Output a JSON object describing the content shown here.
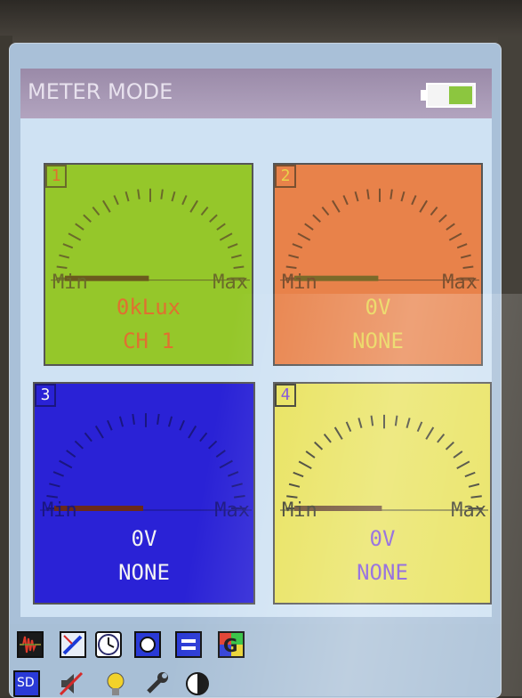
{
  "app": {
    "title": "METER MODE",
    "battery_level": 0.55
  },
  "meters": [
    {
      "number": "1",
      "min_label": "Min",
      "max_label": "Max",
      "value": "0kLux",
      "channel": "CH 1",
      "colors": {
        "bg": "#95c72a",
        "text": "#e07030",
        "ticks": "#6a6a2a",
        "bar": "#6b5a1e"
      }
    },
    {
      "number": "2",
      "min_label": "Min",
      "max_label": "Max",
      "value": "0V",
      "channel": "NONE",
      "colors": {
        "bg": "#e8824a",
        "text": "#e8d24a",
        "ticks": "#7a5030",
        "bar": "#7a6a2a"
      }
    },
    {
      "number": "3",
      "min_label": "Min",
      "max_label": "Max",
      "value": "0V",
      "channel": "NONE",
      "colors": {
        "bg": "#2a22d6",
        "text": "#f4f4f4",
        "ticks": "#1a1680",
        "bar": "#6a2a1a"
      }
    },
    {
      "number": "4",
      "min_label": "Min",
      "max_label": "Max",
      "value": "0V",
      "channel": "NONE",
      "colors": {
        "bg": "#e8e25a",
        "text": "#7a4ad6",
        "ticks": "#3a3a2a",
        "bar": "#6a4a2a"
      }
    }
  ],
  "toolbar": {
    "row1": [
      "waveform-icon",
      "probe-icon",
      "clock-icon",
      "record-icon",
      "equal-icon",
      "g-icon"
    ],
    "row2": [
      "sd-card-icon",
      "speaker-icon",
      "lightbulb-icon",
      "wrench-icon",
      "contrast-icon"
    ],
    "sd_label": "SD"
  }
}
